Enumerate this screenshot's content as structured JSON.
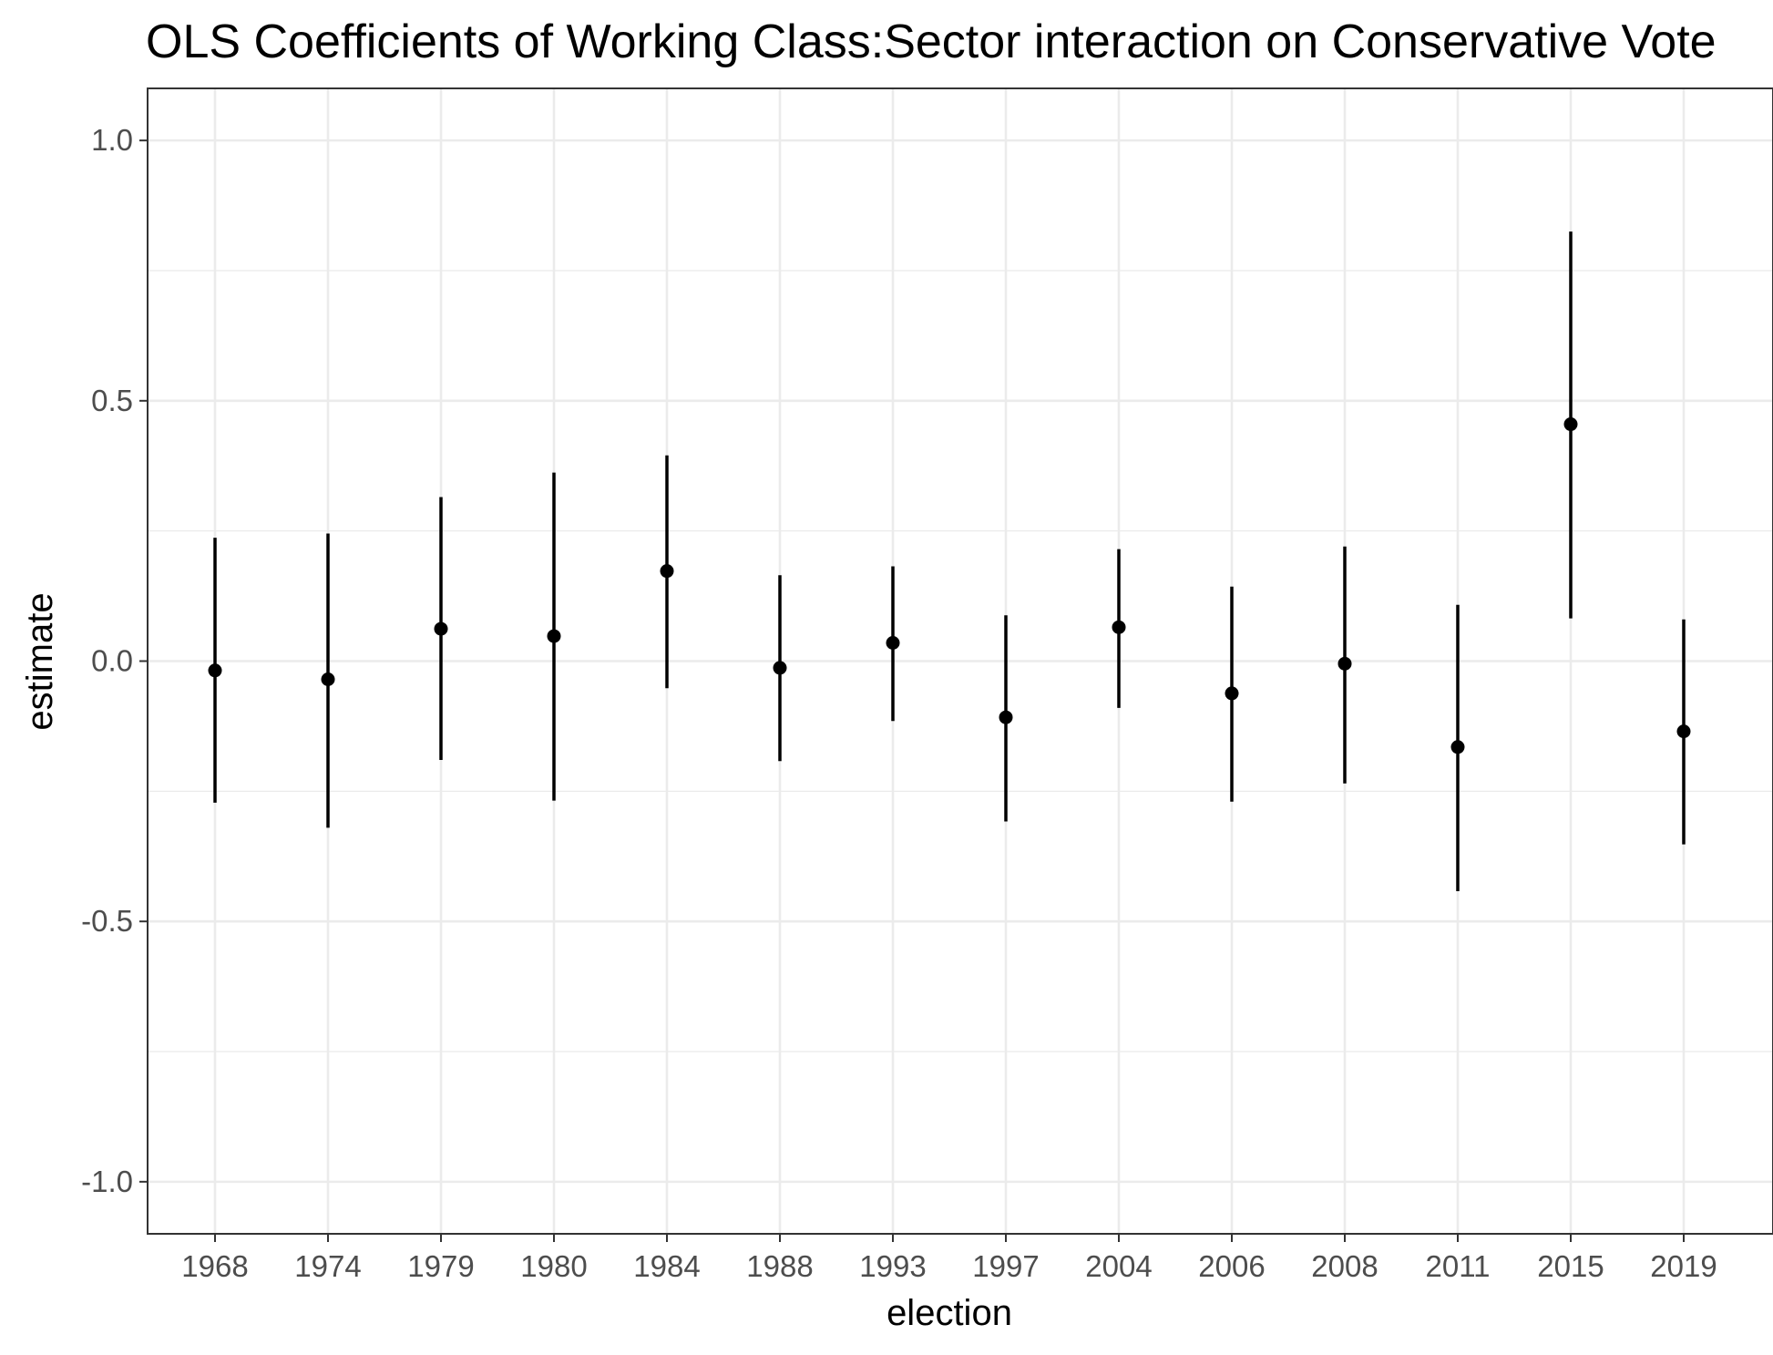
{
  "chart_data": {
    "type": "scatter",
    "title": "OLS Coefficients of Working Class:Sector interaction on Conservative Vote",
    "xlabel": "election",
    "ylabel": "estimate",
    "ylim": [
      -1.1,
      1.1
    ],
    "yticks": [
      -1.0,
      -0.5,
      0.0,
      0.5,
      1.0
    ],
    "ytick_labels": [
      "-1.0",
      "-0.5",
      "0.0",
      "0.5",
      "1.0"
    ],
    "grid": true,
    "categories": [
      "1968",
      "1974",
      "1979",
      "1980",
      "1984",
      "1988",
      "1993",
      "1997",
      "2004",
      "2006",
      "2008",
      "2011",
      "2015",
      "2019"
    ],
    "series": [
      {
        "estimate": [
          -0.018,
          -0.035,
          0.062,
          0.048,
          0.173,
          -0.013,
          0.035,
          -0.108,
          0.065,
          -0.062,
          -0.005,
          -0.165,
          0.455,
          -0.135
        ],
        "conf_low": [
          -0.272,
          -0.32,
          -0.19,
          -0.268,
          -0.052,
          -0.192,
          -0.115,
          -0.308,
          -0.09,
          -0.27,
          -0.235,
          -0.442,
          0.082,
          -0.352
        ],
        "conf_high": [
          0.237,
          0.245,
          0.315,
          0.362,
          0.395,
          0.165,
          0.182,
          0.088,
          0.215,
          0.143,
          0.22,
          0.108,
          0.825,
          0.08
        ]
      }
    ],
    "colors": {
      "point": "#000000",
      "grid": "#ebebeb",
      "panel_border": "#333333",
      "tick_text": "#4d4d4d"
    }
  }
}
